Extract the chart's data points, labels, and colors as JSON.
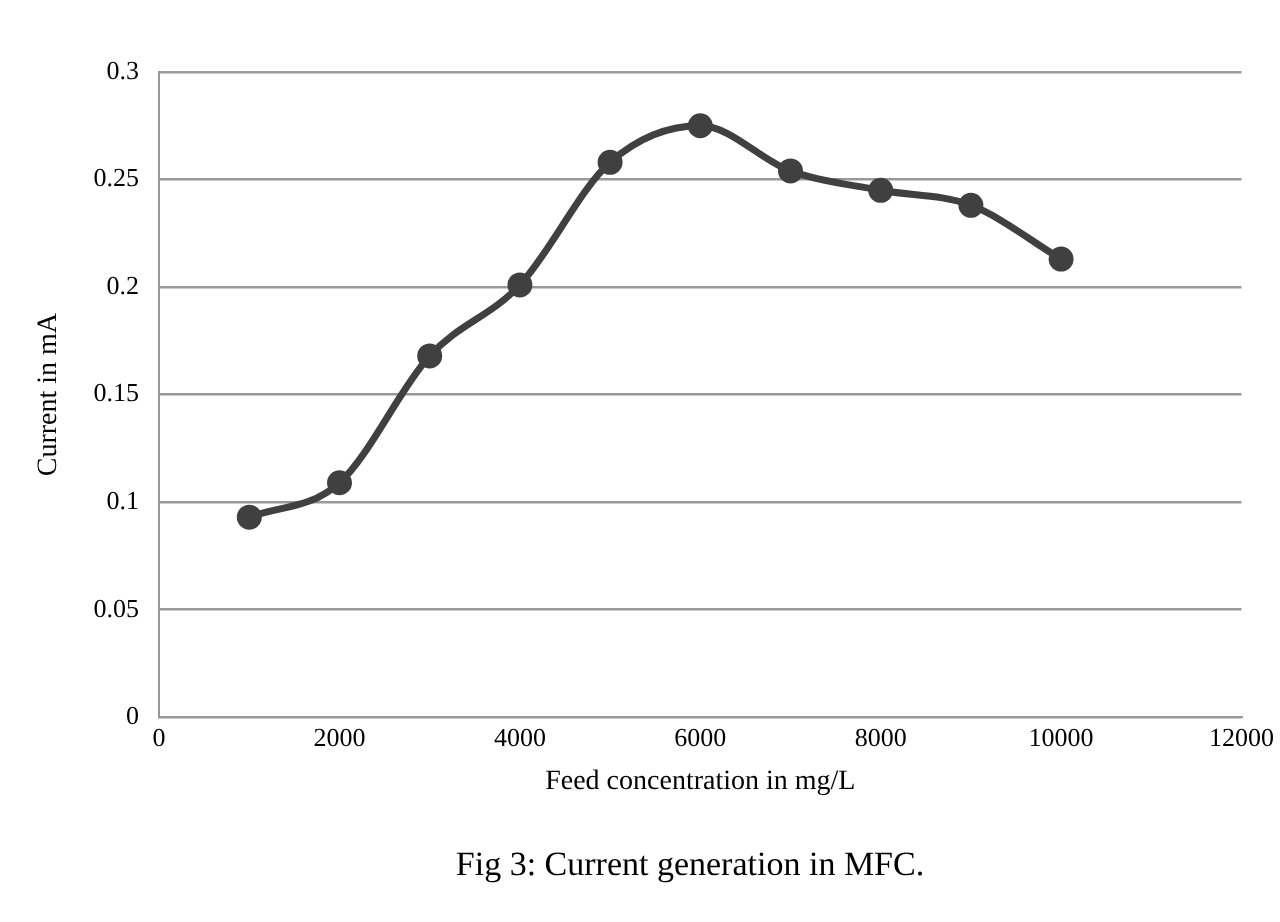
{
  "chart_data": {
    "type": "line",
    "xlabel": "Feed concentration in mg/L",
    "ylabel": "Current in mA",
    "annotations": [
      "Fig 3: Current generation in MFC."
    ],
    "x": [
      1000,
      2000,
      3000,
      4000,
      5000,
      6000,
      7000,
      8000,
      9000,
      10000
    ],
    "series": [
      {
        "color": "#404040",
        "values": [
          0.093,
          0.109,
          0.168,
          0.201,
          0.258,
          0.275,
          0.254,
          0.245,
          0.238,
          0.213
        ]
      }
    ],
    "xlim": [
      0,
      12000
    ],
    "xticks": [
      0,
      2000,
      4000,
      6000,
      8000,
      10000,
      12000
    ],
    "ylim": [
      0,
      0.3
    ],
    "yticks": [
      0,
      0.05,
      0.1,
      0.15,
      0.2,
      0.25,
      0.3
    ],
    "grid": "y",
    "legend": false,
    "marker": "circle",
    "line_style": "solid"
  }
}
